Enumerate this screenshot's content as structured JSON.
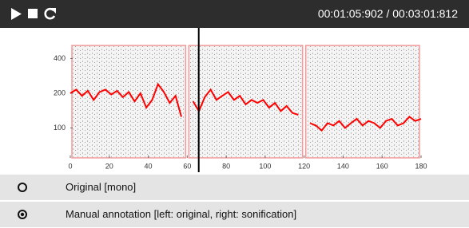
{
  "header": {
    "time": "00:01:05:902 / 00:03:01:812"
  },
  "chart_data": {
    "type": "line",
    "x": [
      0,
      3,
      6,
      9,
      12,
      15,
      18,
      21,
      24,
      27,
      30,
      33,
      36,
      39,
      42,
      45,
      48,
      51,
      54,
      57,
      60,
      63,
      66,
      69,
      72,
      75,
      78,
      81,
      84,
      87,
      90,
      93,
      96,
      99,
      102,
      105,
      108,
      111,
      114,
      117,
      120,
      123,
      126,
      129,
      132,
      135,
      138,
      141,
      144,
      147,
      150,
      153,
      156,
      159,
      162,
      165,
      168,
      171,
      174,
      177,
      180
    ],
    "series": [
      {
        "color": "#ff0000",
        "values": [
          200,
          215,
          190,
          210,
          175,
          205,
          215,
          195,
          210,
          185,
          205,
          170,
          200,
          150,
          175,
          240,
          205,
          165,
          190,
          125,
          null,
          170,
          140,
          185,
          215,
          175,
          190,
          205,
          175,
          190,
          160,
          175,
          165,
          175,
          150,
          165,
          140,
          155,
          135,
          130,
          null,
          110,
          105,
          95,
          110,
          105,
          115,
          100,
          110,
          120,
          105,
          115,
          110,
          100,
          115,
          120,
          105,
          110,
          125,
          115,
          120
        ]
      }
    ],
    "xlim": [
      0,
      180
    ],
    "xticks": [
      0,
      20,
      40,
      60,
      80,
      100,
      120,
      140,
      160,
      180
    ],
    "ylim": [
      55,
      520
    ],
    "yticks": [
      100,
      200,
      400
    ],
    "log_y": true,
    "segments": [
      [
        0,
        60
      ],
      [
        60,
        120
      ],
      [
        120,
        180
      ]
    ],
    "playhead": 65.902
  },
  "options": [
    {
      "label": "Original [mono]",
      "selected": false
    },
    {
      "label": "Manual annotation [left: original, right: sonification]",
      "selected": true
    }
  ]
}
